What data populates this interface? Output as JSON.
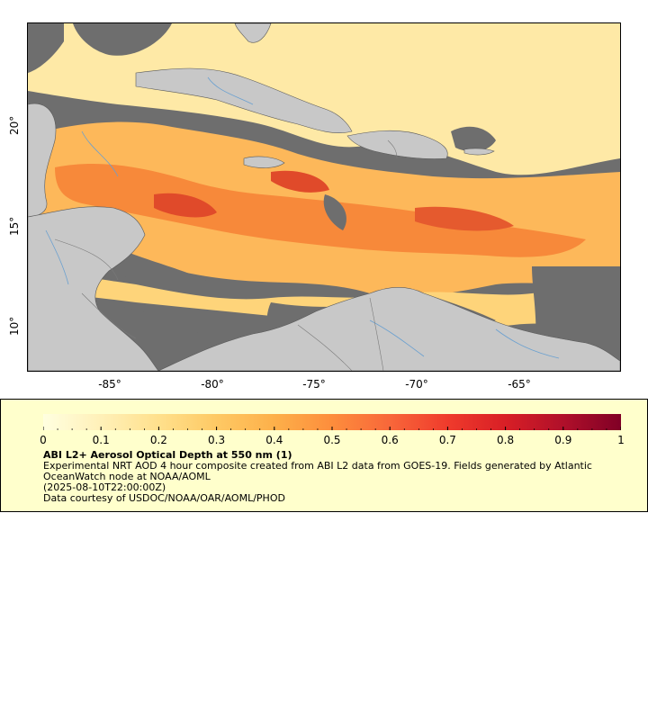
{
  "map": {
    "x_tick_labels": [
      "-85°",
      "-80°",
      "-75°",
      "-70°",
      "-65°"
    ],
    "y_tick_labels": [
      "20°",
      "15°",
      "10°"
    ],
    "colors": {
      "no_data": "#6e6e6e",
      "land": "#c8c8c8",
      "rivers": "#6aa0d0",
      "borders": "#7a7a7a",
      "coast": "#000000"
    }
  },
  "colorbar": {
    "tick_labels": [
      "0",
      "0.1",
      "0.2",
      "0.3",
      "0.4",
      "0.5",
      "0.6",
      "0.7",
      "0.8",
      "0.9",
      "1"
    ],
    "range": [
      0,
      1
    ],
    "colors": [
      "#ffffe0",
      "#fff0b8",
      "#ffe08c",
      "#fec964",
      "#fdb04a",
      "#fd8d3c",
      "#f8673a",
      "#ef3b2c",
      "#d81f26",
      "#b0102a",
      "#800026"
    ]
  },
  "legend": {
    "title": "ABI L2+ Aerosol Optical Depth at 550 nm (1)",
    "line1": "Experimental NRT AOD 4 hour composite created from ABI L2 data from GOES-19. Fields generated by Atlantic OceanWatch node at NOAA/AOML",
    "line2": "(2025-08-10T22:00:00Z)",
    "line3": "Data courtesy of USDOC/NOAA/OAR/AOML/PHOD"
  }
}
